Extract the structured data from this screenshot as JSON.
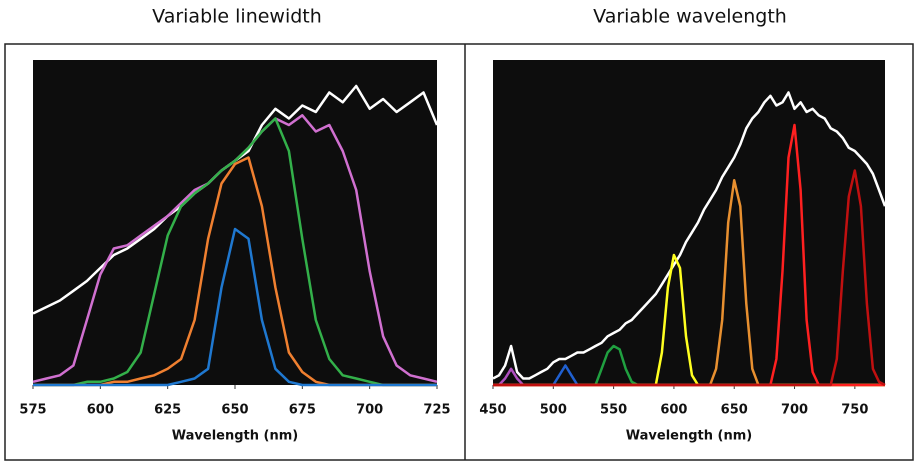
{
  "chart_data": [
    {
      "type": "line",
      "title": "Variable linewidth",
      "x_label": "Wavelength (nm)",
      "x": [
        575,
        580,
        585,
        590,
        595,
        600,
        605,
        610,
        615,
        620,
        625,
        630,
        635,
        640,
        645,
        650,
        655,
        660,
        665,
        670,
        675,
        680,
        685,
        690,
        695,
        700,
        705,
        710,
        715,
        720,
        725
      ],
      "xlim": [
        575,
        725
      ],
      "xticks": [
        575,
        600,
        625,
        650,
        675,
        700,
        725
      ],
      "ylim": [
        0,
        1
      ],
      "series": [
        {
          "color": "#ffffff",
          "values": [
            0.22,
            0.24,
            0.26,
            0.29,
            0.32,
            0.36,
            0.4,
            0.42,
            0.45,
            0.48,
            0.52,
            0.55,
            0.59,
            0.62,
            0.66,
            0.69,
            0.72,
            0.8,
            0.85,
            0.82,
            0.86,
            0.84,
            0.9,
            0.87,
            0.92,
            0.85,
            0.88,
            0.84,
            0.87,
            0.9,
            0.8
          ]
        },
        {
          "color": "#d070d0",
          "values": [
            0.01,
            0.02,
            0.03,
            0.06,
            0.2,
            0.34,
            0.42,
            0.43,
            0.46,
            0.49,
            0.52,
            0.56,
            0.6,
            0.62,
            0.66,
            0.69,
            0.73,
            0.78,
            0.82,
            0.8,
            0.83,
            0.78,
            0.8,
            0.72,
            0.6,
            0.35,
            0.15,
            0.06,
            0.03,
            0.02,
            0.01
          ]
        },
        {
          "color": "#33b04a",
          "values": [
            0,
            0,
            0,
            0,
            0.01,
            0.01,
            0.02,
            0.04,
            0.1,
            0.28,
            0.46,
            0.55,
            0.59,
            0.62,
            0.66,
            0.69,
            0.73,
            0.78,
            0.82,
            0.72,
            0.45,
            0.2,
            0.08,
            0.03,
            0.02,
            0.01,
            0,
            0,
            0,
            0,
            0
          ]
        },
        {
          "color": "#f08030",
          "values": [
            0,
            0,
            0,
            0,
            0,
            0,
            0.01,
            0.01,
            0.02,
            0.03,
            0.05,
            0.08,
            0.2,
            0.45,
            0.62,
            0.68,
            0.7,
            0.55,
            0.3,
            0.1,
            0.04,
            0.01,
            0,
            0,
            0,
            0,
            0,
            0,
            0,
            0,
            0
          ]
        },
        {
          "color": "#1f78d0",
          "values": [
            0,
            0,
            0,
            0,
            0,
            0,
            0,
            0,
            0,
            0,
            0,
            0.01,
            0.02,
            0.05,
            0.3,
            0.48,
            0.45,
            0.2,
            0.05,
            0.01,
            0,
            0,
            0,
            0,
            0,
            0,
            0,
            0,
            0,
            0,
            0
          ]
        }
      ]
    },
    {
      "type": "line",
      "title": "Variable wavelength",
      "x_label": "Wavelength (nm)",
      "x": [
        450,
        455,
        460,
        465,
        470,
        475,
        480,
        485,
        490,
        495,
        500,
        505,
        510,
        515,
        520,
        525,
        530,
        535,
        540,
        545,
        550,
        555,
        560,
        565,
        570,
        575,
        580,
        585,
        590,
        595,
        600,
        605,
        610,
        615,
        620,
        625,
        630,
        635,
        640,
        645,
        650,
        655,
        660,
        665,
        670,
        675,
        680,
        685,
        690,
        695,
        700,
        705,
        710,
        715,
        720,
        725,
        730,
        735,
        740,
        745,
        750,
        755,
        760,
        765,
        770,
        775
      ],
      "xlim": [
        450,
        775
      ],
      "xticks": [
        450,
        500,
        550,
        600,
        650,
        700,
        750
      ],
      "ylim": [
        0,
        1
      ],
      "series": [
        {
          "color": "#ffffff",
          "values": [
            0.02,
            0.03,
            0.06,
            0.12,
            0.04,
            0.02,
            0.02,
            0.03,
            0.04,
            0.05,
            0.07,
            0.08,
            0.08,
            0.09,
            0.1,
            0.1,
            0.11,
            0.12,
            0.13,
            0.15,
            0.16,
            0.17,
            0.19,
            0.2,
            0.22,
            0.24,
            0.26,
            0.28,
            0.31,
            0.34,
            0.37,
            0.4,
            0.44,
            0.47,
            0.5,
            0.54,
            0.57,
            0.6,
            0.64,
            0.67,
            0.7,
            0.74,
            0.79,
            0.82,
            0.84,
            0.87,
            0.89,
            0.86,
            0.87,
            0.9,
            0.85,
            0.87,
            0.84,
            0.85,
            0.83,
            0.82,
            0.79,
            0.78,
            0.76,
            0.73,
            0.72,
            0.7,
            0.68,
            0.65,
            0.6,
            0.55
          ]
        },
        {
          "color": "#b050c0",
          "values": [
            0,
            0,
            0.02,
            0.05,
            0.02,
            0,
            0,
            0,
            0,
            0,
            0,
            0,
            0,
            0,
            0,
            0,
            0,
            0,
            0,
            0,
            0,
            0,
            0,
            0,
            0,
            0,
            0,
            0,
            0,
            0,
            0,
            0,
            0,
            0,
            0,
            0,
            0,
            0,
            0,
            0,
            0,
            0,
            0,
            0,
            0,
            0,
            0,
            0,
            0,
            0,
            0,
            0,
            0,
            0,
            0,
            0,
            0,
            0,
            0,
            0,
            0,
            0,
            0,
            0,
            0,
            0
          ]
        },
        {
          "color": "#2060d0",
          "values": [
            0,
            0,
            0,
            0,
            0,
            0,
            0,
            0,
            0,
            0,
            0,
            0.03,
            0.06,
            0.03,
            0,
            0,
            0,
            0,
            0,
            0,
            0,
            0,
            0,
            0,
            0,
            0,
            0,
            0,
            0,
            0,
            0,
            0,
            0,
            0,
            0,
            0,
            0,
            0,
            0,
            0,
            0,
            0,
            0,
            0,
            0,
            0,
            0,
            0,
            0,
            0,
            0,
            0,
            0,
            0,
            0,
            0,
            0,
            0,
            0,
            0,
            0,
            0,
            0,
            0,
            0,
            0
          ]
        },
        {
          "color": "#20a040",
          "values": [
            0,
            0,
            0,
            0,
            0,
            0,
            0,
            0,
            0,
            0,
            0,
            0,
            0,
            0,
            0,
            0,
            0,
            0,
            0.05,
            0.1,
            0.12,
            0.11,
            0.05,
            0.01,
            0,
            0,
            0,
            0,
            0,
            0,
            0,
            0,
            0,
            0,
            0,
            0,
            0,
            0,
            0,
            0,
            0,
            0,
            0,
            0,
            0,
            0,
            0,
            0,
            0,
            0,
            0,
            0,
            0,
            0,
            0,
            0,
            0,
            0,
            0,
            0,
            0,
            0,
            0,
            0,
            0,
            0
          ]
        },
        {
          "color": "#ffff20",
          "values": [
            0,
            0,
            0,
            0,
            0,
            0,
            0,
            0,
            0,
            0,
            0,
            0,
            0,
            0,
            0,
            0,
            0,
            0,
            0,
            0,
            0,
            0,
            0,
            0,
            0,
            0,
            0,
            0,
            0.1,
            0.3,
            0.4,
            0.36,
            0.15,
            0.03,
            0,
            0,
            0,
            0,
            0,
            0,
            0,
            0,
            0,
            0,
            0,
            0,
            0,
            0,
            0,
            0,
            0,
            0,
            0,
            0,
            0,
            0,
            0,
            0,
            0,
            0,
            0,
            0,
            0,
            0,
            0,
            0
          ]
        },
        {
          "color": "#e89030",
          "values": [
            0,
            0,
            0,
            0,
            0,
            0,
            0,
            0,
            0,
            0,
            0,
            0,
            0,
            0,
            0,
            0,
            0,
            0,
            0,
            0,
            0,
            0,
            0,
            0,
            0,
            0,
            0,
            0,
            0,
            0,
            0,
            0,
            0,
            0,
            0,
            0,
            0,
            0.05,
            0.2,
            0.5,
            0.63,
            0.55,
            0.25,
            0.05,
            0,
            0,
            0,
            0,
            0,
            0,
            0,
            0,
            0,
            0,
            0,
            0,
            0,
            0,
            0,
            0,
            0,
            0,
            0,
            0,
            0,
            0
          ]
        },
        {
          "color": "#ff2020",
          "values": [
            0,
            0,
            0,
            0,
            0,
            0,
            0,
            0,
            0,
            0,
            0,
            0,
            0,
            0,
            0,
            0,
            0,
            0,
            0,
            0,
            0,
            0,
            0,
            0,
            0,
            0,
            0,
            0,
            0,
            0,
            0,
            0,
            0,
            0,
            0,
            0,
            0,
            0,
            0,
            0,
            0,
            0,
            0,
            0,
            0,
            0,
            0,
            0.08,
            0.35,
            0.7,
            0.8,
            0.6,
            0.2,
            0.04,
            0,
            0,
            0,
            0,
            0,
            0,
            0,
            0,
            0,
            0,
            0,
            0
          ]
        },
        {
          "color": "#c01010",
          "values": [
            0,
            0,
            0,
            0,
            0,
            0,
            0,
            0,
            0,
            0,
            0,
            0,
            0,
            0,
            0,
            0,
            0,
            0,
            0,
            0,
            0,
            0,
            0,
            0,
            0,
            0,
            0,
            0,
            0,
            0,
            0,
            0,
            0,
            0,
            0,
            0,
            0,
            0,
            0,
            0,
            0,
            0,
            0,
            0,
            0,
            0,
            0,
            0,
            0,
            0,
            0,
            0,
            0,
            0,
            0,
            0,
            0,
            0.08,
            0.35,
            0.58,
            0.66,
            0.55,
            0.25,
            0.05,
            0.01,
            0
          ]
        }
      ]
    }
  ]
}
